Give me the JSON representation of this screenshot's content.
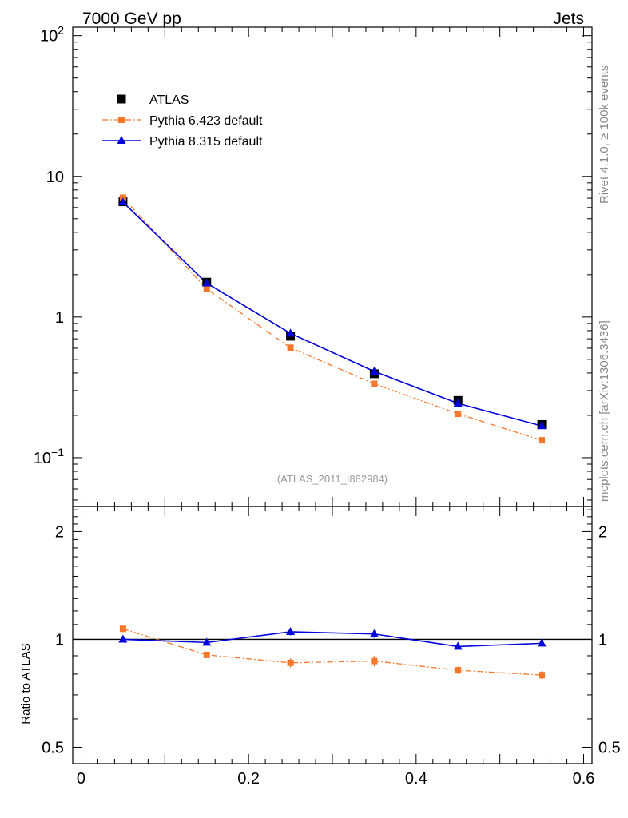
{
  "header": {
    "left": "7000 GeV pp",
    "right": "Jets",
    "side_top": "Rivet 4.1.0, ≥ 100k events",
    "side_bottom": "mcplots.cern.ch [arXiv:1306.3436]",
    "analysis": "(ATLAS_2011_I882984)"
  },
  "colors": {
    "atlas": "#000000",
    "pythia6": "#f5782a",
    "pythia8": "#0000dd"
  },
  "chart_data": [
    {
      "type": "scatter",
      "panel": "main",
      "yscale": "log",
      "xlim": [
        -0.01,
        0.61
      ],
      "ylim": [
        0.045,
        115
      ],
      "ytick_labels": [
        {
          "value": 100,
          "base": "10",
          "exp": "2"
        },
        {
          "value": 10,
          "base": "10",
          "exp": ""
        },
        {
          "value": 1,
          "base": "1",
          "exp": ""
        },
        {
          "value": 0.1,
          "base": "10",
          "exp": "−1"
        }
      ],
      "legend_position": "top-left",
      "x": [
        0.05,
        0.15,
        0.25,
        0.35,
        0.45,
        0.55
      ],
      "series": [
        {
          "name": "ATLAS",
          "key": "atlas",
          "marker": "square",
          "line": "none",
          "values": [
            6.6,
            1.77,
            0.73,
            0.395,
            0.255,
            0.172
          ]
        },
        {
          "name": "Pythia 6.423 default",
          "key": "pythia6",
          "marker": "square-small",
          "line": "dashdot",
          "values": [
            7.05,
            1.58,
            0.605,
            0.335,
            0.205,
            0.133
          ]
        },
        {
          "name": "Pythia 8.315 default",
          "key": "pythia8",
          "marker": "triangle",
          "line": "solid",
          "values": [
            6.55,
            1.74,
            0.765,
            0.41,
            0.243,
            0.168
          ]
        }
      ]
    },
    {
      "type": "line",
      "panel": "ratio",
      "ylabel": "Ratio to ATLAS",
      "yscale": "log",
      "xlim": [
        -0.01,
        0.61
      ],
      "ylim": [
        0.45,
        2.35
      ],
      "ytick_labels": [
        {
          "value": 2,
          "label": "2"
        },
        {
          "value": 1,
          "label": "1"
        },
        {
          "value": 0.5,
          "label": "0.5"
        }
      ],
      "xtick_labels": [
        {
          "value": 0,
          "label": "0"
        },
        {
          "value": 0.2,
          "label": "0.2"
        },
        {
          "value": 0.4,
          "label": "0.4"
        },
        {
          "value": 0.6,
          "label": "0.6"
        }
      ],
      "x": [
        0.05,
        0.15,
        0.25,
        0.35,
        0.45,
        0.55
      ],
      "series": [
        {
          "name": "Pythia 6.423 default",
          "key": "pythia6",
          "line": "dashdot",
          "values": [
            1.07,
            0.905,
            0.86,
            0.87,
            0.82,
            0.795
          ],
          "errors": [
            0.01,
            0.015,
            0.025,
            0.03,
            0.02,
            0.02
          ]
        },
        {
          "name": "Pythia 8.315 default",
          "key": "pythia8",
          "line": "solid",
          "values": [
            1.0,
            0.98,
            1.05,
            1.035,
            0.955,
            0.975
          ],
          "errors": [
            0.008,
            0.012,
            0.025,
            0.025,
            0.018,
            0.015
          ]
        }
      ]
    }
  ]
}
